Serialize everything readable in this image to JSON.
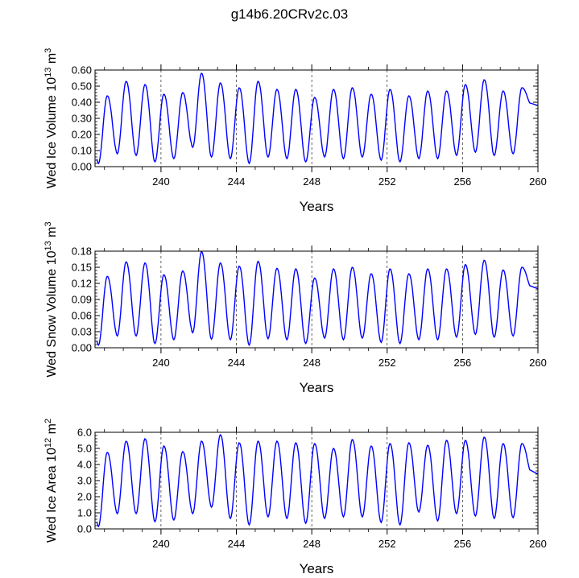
{
  "title": "g14b6.20CRv2c.03",
  "line_color": "#0000ff",
  "chart_data": [
    {
      "type": "line",
      "title": "",
      "xlabel": "Years",
      "ylabel_parts": [
        "Wed Ice Volume 10",
        "13",
        " m",
        "3"
      ],
      "xlim": [
        236.5,
        260
      ],
      "ylim": [
        0,
        0.6
      ],
      "xticks": [
        240,
        244,
        248,
        252,
        256,
        260
      ],
      "xtick_labels": [
        "240",
        "244",
        "248",
        "252",
        "256",
        "260"
      ],
      "yticks": [
        0,
        0.1,
        0.2,
        0.3,
        0.4,
        0.5,
        0.6
      ],
      "ytick_labels": [
        "0.00",
        "0.10",
        "0.20",
        "0.30",
        "0.40",
        "0.50",
        "0.60"
      ],
      "vgrid_dashed_at": [
        240,
        244,
        248,
        252,
        256
      ],
      "series": [
        {
          "peaks": [
            0.44,
            0.53,
            0.51,
            0.45,
            0.46,
            0.58,
            0.52,
            0.49,
            0.53,
            0.48,
            0.48,
            0.43,
            0.48,
            0.49,
            0.45,
            0.48,
            0.44,
            0.47,
            0.47,
            0.51,
            0.54,
            0.47,
            0.49
          ],
          "troughs": [
            0.02,
            0.08,
            0.07,
            0.03,
            0.05,
            0.12,
            0.06,
            0.05,
            0.02,
            0.06,
            0.05,
            0.03,
            0.06,
            0.05,
            0.06,
            0.04,
            0.03,
            0.05,
            0.05,
            0.07,
            0.09,
            0.07,
            0.08
          ],
          "end_value": 0.38
        }
      ]
    },
    {
      "type": "line",
      "title": "",
      "xlabel": "Years",
      "ylabel_parts": [
        "Wed Snow Volume 10",
        "13",
        " m",
        "3"
      ],
      "xlim": [
        236.5,
        260
      ],
      "ylim": [
        0,
        0.18
      ],
      "xticks": [
        240,
        244,
        248,
        252,
        256,
        260
      ],
      "xtick_labels": [
        "240",
        "244",
        "248",
        "252",
        "256",
        "260"
      ],
      "yticks": [
        0,
        0.03,
        0.06,
        0.09,
        0.12,
        0.15,
        0.18
      ],
      "ytick_labels": [
        "0.00",
        "0.03",
        "0.06",
        "0.09",
        "0.12",
        "0.15",
        "0.18"
      ],
      "vgrid_dashed_at": [
        240,
        244,
        248,
        252,
        256
      ],
      "series": [
        {
          "peaks": [
            0.133,
            0.16,
            0.158,
            0.136,
            0.143,
            0.179,
            0.158,
            0.152,
            0.161,
            0.148,
            0.147,
            0.13,
            0.147,
            0.15,
            0.138,
            0.147,
            0.138,
            0.147,
            0.147,
            0.155,
            0.163,
            0.145,
            0.15
          ],
          "troughs": [
            0.005,
            0.022,
            0.022,
            0.008,
            0.015,
            0.028,
            0.016,
            0.015,
            0.005,
            0.017,
            0.015,
            0.008,
            0.018,
            0.015,
            0.018,
            0.01,
            0.008,
            0.015,
            0.015,
            0.02,
            0.025,
            0.02,
            0.022
          ],
          "end_value": 0.11
        }
      ]
    },
    {
      "type": "line",
      "title": "",
      "xlabel": "Years",
      "ylabel_parts": [
        "Wed Ice Area 10",
        "12",
        " m",
        "2"
      ],
      "xlim": [
        236.5,
        260
      ],
      "ylim": [
        0,
        6
      ],
      "xticks": [
        240,
        244,
        248,
        252,
        256,
        260
      ],
      "xtick_labels": [
        "240",
        "244",
        "248",
        "252",
        "256",
        "260"
      ],
      "yticks": [
        0,
        1,
        2,
        3,
        4,
        5,
        6
      ],
      "ytick_labels": [
        "0.0",
        "1.0",
        "2.0",
        "3.0",
        "4.0",
        "5.0",
        "6.0"
      ],
      "vgrid_dashed_at": [
        240,
        244,
        248,
        252,
        256
      ],
      "series": [
        {
          "peaks": [
            4.75,
            5.45,
            5.6,
            5.15,
            4.8,
            5.45,
            5.85,
            5.35,
            5.45,
            5.45,
            5.35,
            5.3,
            5.0,
            5.55,
            5.15,
            5.3,
            5.35,
            5.2,
            5.5,
            5.5,
            5.7,
            5.3,
            5.3
          ],
          "troughs": [
            0.15,
            0.95,
            0.95,
            0.45,
            0.55,
            0.95,
            1.35,
            0.65,
            0.25,
            0.75,
            0.65,
            0.35,
            0.65,
            0.75,
            0.75,
            0.4,
            0.25,
            1.05,
            0.5,
            0.95,
            0.8,
            0.65,
            0.7
          ],
          "end_value": 3.4
        }
      ]
    }
  ]
}
